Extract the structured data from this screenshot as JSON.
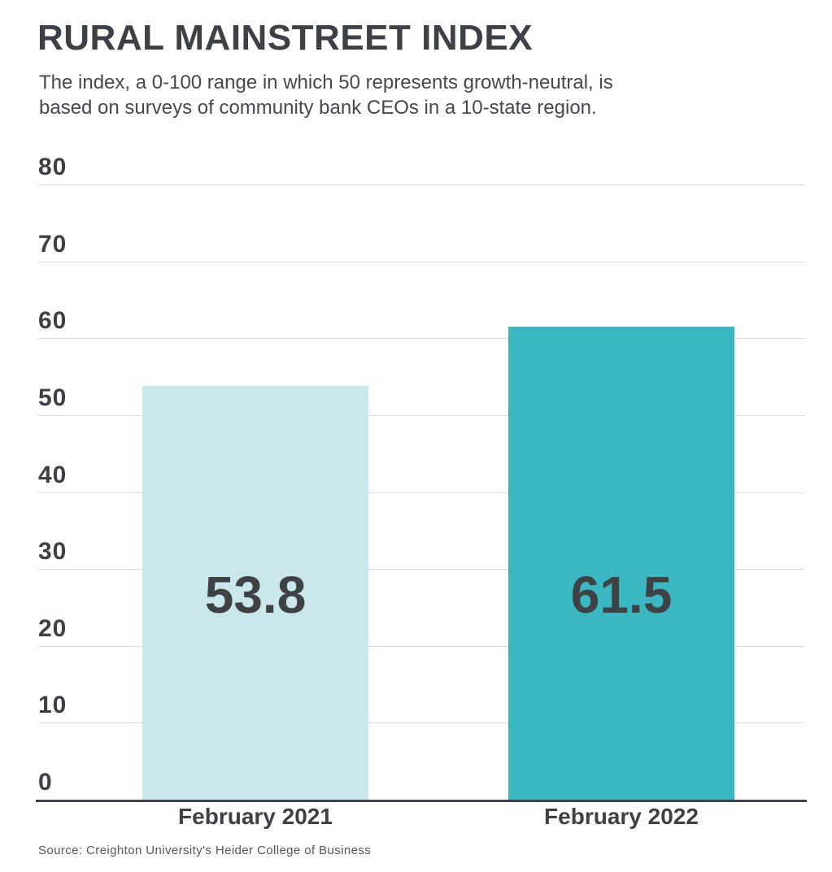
{
  "header": {
    "title": "RURAL MAINSTREET INDEX",
    "subtitle_line1": "The index, a 0-100 range in which 50 represents growth-neutral, is",
    "subtitle_line2": "based on surveys of community bank CEOs in a 10-state region."
  },
  "chart_data": {
    "type": "bar",
    "title": "RURAL MAINSTREET INDEX",
    "categories": [
      "February 2021",
      "February 2022"
    ],
    "values": [
      53.8,
      61.5
    ],
    "value_labels": [
      "53.8",
      "61.5"
    ],
    "bar_colors": [
      "#cae8eb",
      "#3ab7c1"
    ],
    "xlabel": "",
    "ylabel": "",
    "ylim": [
      0,
      80
    ],
    "yticks": [
      0,
      10,
      20,
      30,
      40,
      50,
      60,
      70,
      80
    ],
    "grid": "horizontal-only",
    "legend": "none"
  },
  "footer": {
    "source": "Source: Creighton University's Heider College of Business"
  },
  "colors": {
    "text_dark": "#3d4145",
    "subtitle_text": "#45494d",
    "bar_feb_2021": "#cae8eb",
    "bar_feb_2022": "#3ab7c1",
    "gridline": "#dadcdd",
    "axis_line": "#3f4347",
    "source_text": "#53575a",
    "background": "#ffffff"
  }
}
